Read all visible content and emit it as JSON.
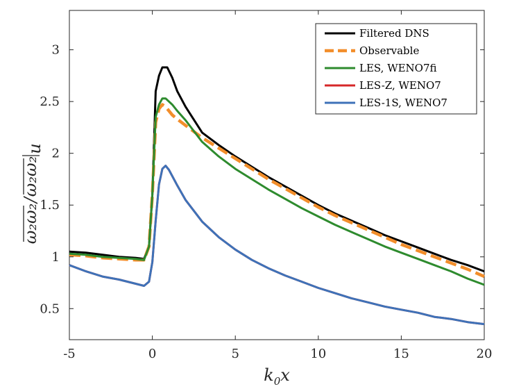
{
  "chart_data": {
    "type": "line",
    "title": "",
    "xlabel": "k0x",
    "xlabel_main": "k",
    "xlabel_sub": "0",
    "xlabel_tail": "x",
    "ylabel": "̅ω₂ω₂/̅ω₂ω₂|u",
    "ylabel_num": "ω₂ω₂",
    "ylabel_den": "ω₂ω₂",
    "ylabel_sub": "u",
    "xlim": [
      -5,
      20
    ],
    "ylim": [
      0.2,
      3.38
    ],
    "xticks": [
      -5,
      0,
      5,
      10,
      15,
      20
    ],
    "xtick_labels": [
      "-5",
      "0",
      "5",
      "10",
      "15",
      "20"
    ],
    "yticks": [
      0.5,
      1,
      1.5,
      2,
      2.5,
      3
    ],
    "ytick_labels": [
      "0.5",
      "1",
      "1.5",
      "2",
      "2.5",
      "3"
    ],
    "grid": false,
    "legend_position": "top-right",
    "series": [
      {
        "name": "Filtered DNS",
        "color": "#000000",
        "dash": "solid",
        "x": [
          -5,
          -4,
          -3,
          -2,
          -1,
          -0.5,
          -0.2,
          0,
          0.2,
          0.4,
          0.6,
          0.9,
          1.2,
          1.5,
          2,
          3,
          4,
          5,
          6,
          7,
          8,
          9,
          10,
          11,
          12,
          13,
          14,
          15,
          16,
          17,
          18,
          19,
          20
        ],
        "y": [
          1.05,
          1.04,
          1.02,
          1.0,
          0.99,
          0.98,
          1.1,
          1.6,
          2.6,
          2.75,
          2.83,
          2.83,
          2.73,
          2.6,
          2.45,
          2.2,
          2.08,
          1.97,
          1.87,
          1.77,
          1.68,
          1.59,
          1.5,
          1.42,
          1.35,
          1.28,
          1.21,
          1.15,
          1.09,
          1.03,
          0.97,
          0.92,
          0.86
        ]
      },
      {
        "name": "Observable",
        "color": "#F28E2B",
        "dash": "dashed",
        "x": [
          -5,
          -4,
          -3,
          -2,
          -1,
          -0.5,
          -0.2,
          0,
          0.2,
          0.4,
          0.6,
          0.8,
          1.2,
          1.5,
          2,
          3,
          4,
          5,
          6,
          7,
          8,
          9,
          10,
          11,
          12,
          13,
          14,
          15,
          16,
          17,
          18,
          19,
          20
        ],
        "y": [
          1.02,
          1.01,
          0.99,
          0.98,
          0.97,
          0.97,
          1.1,
          1.6,
          2.3,
          2.43,
          2.47,
          2.45,
          2.37,
          2.33,
          2.27,
          2.15,
          2.05,
          1.95,
          1.85,
          1.75,
          1.66,
          1.57,
          1.48,
          1.4,
          1.33,
          1.26,
          1.19,
          1.12,
          1.06,
          1.0,
          0.94,
          0.88,
          0.81
        ]
      },
      {
        "name": "LES, WENO7fi",
        "color": "#2E8B2E",
        "dash": "solid",
        "x": [
          -5,
          -4,
          -3,
          -2,
          -1,
          -0.5,
          -0.2,
          0,
          0.2,
          0.4,
          0.6,
          0.8,
          1.2,
          1.5,
          2,
          3,
          4,
          5,
          6,
          7,
          8,
          9,
          10,
          11,
          12,
          13,
          14,
          15,
          16,
          17,
          18,
          19,
          20
        ],
        "y": [
          1.03,
          1.02,
          1.0,
          0.99,
          0.98,
          0.97,
          1.1,
          1.6,
          2.35,
          2.47,
          2.53,
          2.53,
          2.47,
          2.41,
          2.32,
          2.11,
          1.97,
          1.85,
          1.75,
          1.65,
          1.56,
          1.47,
          1.39,
          1.31,
          1.24,
          1.17,
          1.1,
          1.04,
          0.98,
          0.92,
          0.86,
          0.79,
          0.73
        ]
      },
      {
        "name": "LES-Z, WENO7",
        "color": "#D62728",
        "dash": "solid",
        "x": [
          -5,
          -4,
          -3,
          -2,
          -1,
          -0.5,
          -0.2,
          0,
          0.2,
          0.4,
          0.6,
          0.8,
          1,
          1.5,
          2,
          3,
          4,
          5,
          6,
          7,
          8,
          9,
          10,
          11,
          12,
          13,
          14,
          15,
          16,
          17,
          18,
          19,
          20
        ],
        "y": [
          0.92,
          0.86,
          0.81,
          0.78,
          0.74,
          0.72,
          0.76,
          0.95,
          1.35,
          1.7,
          1.85,
          1.88,
          1.84,
          1.69,
          1.55,
          1.34,
          1.19,
          1.07,
          0.97,
          0.89,
          0.82,
          0.76,
          0.7,
          0.65,
          0.6,
          0.56,
          0.52,
          0.49,
          0.46,
          0.42,
          0.4,
          0.37,
          0.35
        ]
      },
      {
        "name": "LES-1S, WENO7",
        "color": "#3E72B8",
        "dash": "solid",
        "x": [
          -5,
          -4,
          -3,
          -2,
          -1,
          -0.5,
          -0.2,
          0,
          0.2,
          0.4,
          0.6,
          0.8,
          1,
          1.5,
          2,
          3,
          4,
          5,
          6,
          7,
          8,
          9,
          10,
          11,
          12,
          13,
          14,
          15,
          16,
          17,
          18,
          19,
          20
        ],
        "y": [
          0.92,
          0.86,
          0.81,
          0.78,
          0.74,
          0.72,
          0.76,
          0.95,
          1.35,
          1.7,
          1.85,
          1.88,
          1.84,
          1.69,
          1.55,
          1.34,
          1.19,
          1.07,
          0.97,
          0.89,
          0.82,
          0.76,
          0.7,
          0.65,
          0.6,
          0.56,
          0.52,
          0.49,
          0.46,
          0.42,
          0.4,
          0.37,
          0.35
        ]
      }
    ]
  }
}
